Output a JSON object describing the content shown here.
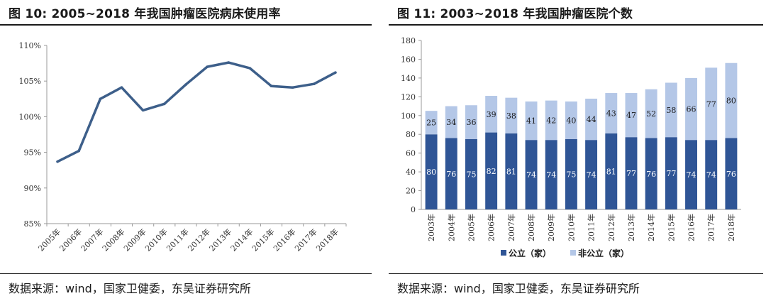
{
  "charts": {
    "left": {
      "title": "图 10:  2005~2018 年我国肿瘤医院病床使用率",
      "source": "数据来源：wind，国家卫健委，东吴证券研究所"
    },
    "right": {
      "title": "图 11:  2003~2018 年我国肿瘤医院个数",
      "source": "数据来源：wind，国家卫健委，东吴证券研究所"
    }
  },
  "colors": {
    "line": "#3d5f8a",
    "public": "#2f5596",
    "private": "#b4c7e7"
  },
  "chart_data": [
    {
      "type": "line",
      "title": "2005~2018 年我国肿瘤医院病床使用率",
      "categories": [
        "2005年",
        "2006年",
        "2007年",
        "2008年",
        "2009年",
        "2010年",
        "2011年",
        "2012年",
        "2013年",
        "2014年",
        "2015年",
        "2016年",
        "2017年",
        "2018年"
      ],
      "y_tick_labels": [
        "85%",
        "90%",
        "95%",
        "100%",
        "105%",
        "110%"
      ],
      "series": [
        {
          "values": [
            93.7,
            95.2,
            102.5,
            104.1,
            100.9,
            101.8,
            104.5,
            107.0,
            107.6,
            106.8,
            104.3,
            104.1,
            104.6,
            106.2
          ]
        }
      ],
      "ylim": [
        85,
        110
      ],
      "ytick_step": 5,
      "grid": false,
      "legend": false
    },
    {
      "type": "bar",
      "stacked": true,
      "title": "2003~2018 年我国肿瘤医院个数",
      "categories": [
        "2003年",
        "2004年",
        "2005年",
        "2006年",
        "2007年",
        "2008年",
        "2009年",
        "2010年",
        "2011年",
        "2012年",
        "2013年",
        "2014年",
        "2015年",
        "2016年",
        "2017年",
        "2018年"
      ],
      "series": [
        {
          "name": "公立（家）",
          "values": [
            80,
            76,
            75,
            82,
            81,
            74,
            74,
            75,
            74,
            81,
            77,
            76,
            77,
            74,
            74,
            76
          ]
        },
        {
          "name": "非公立（家）",
          "values": [
            25,
            34,
            36,
            39,
            38,
            41,
            42,
            40,
            44,
            43,
            47,
            52,
            58,
            66,
            77,
            80
          ]
        }
      ],
      "ylim": [
        0,
        180
      ],
      "ytick_step": 20,
      "grid": false,
      "legend": "bottom"
    }
  ]
}
